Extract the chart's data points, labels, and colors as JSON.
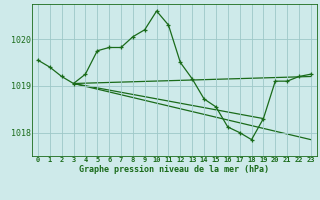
{
  "title": "Graphe pression niveau de la mer (hPa)",
  "bg_color": "#ceeaea",
  "line_color": "#1a6b1a",
  "grid_color": "#9ec8c8",
  "xlim": [
    -0.5,
    23.5
  ],
  "ylim": [
    1017.5,
    1020.75
  ],
  "yticks": [
    1018,
    1019,
    1020
  ],
  "xtick_labels": [
    "0",
    "1",
    "2",
    "3",
    "4",
    "5",
    "6",
    "7",
    "8",
    "9",
    "10",
    "11",
    "12",
    "13",
    "14",
    "15",
    "16",
    "17",
    "18",
    "19",
    "20",
    "21",
    "22",
    "23"
  ],
  "xtick_pos": [
    0,
    1,
    2,
    3,
    4,
    5,
    6,
    7,
    8,
    9,
    10,
    11,
    12,
    13,
    14,
    15,
    16,
    17,
    18,
    19,
    20,
    21,
    22,
    23
  ],
  "series1_x": [
    0,
    1,
    2,
    3,
    4,
    5,
    6,
    7,
    8,
    9,
    10,
    11,
    12,
    13,
    14,
    15,
    16,
    17,
    18,
    19,
    20,
    21,
    22,
    23
  ],
  "series1_y": [
    1019.55,
    1019.4,
    1019.2,
    1019.05,
    1019.25,
    1019.75,
    1019.82,
    1019.82,
    1020.05,
    1020.2,
    1020.6,
    1020.3,
    1019.5,
    1019.15,
    1018.72,
    1018.55,
    1018.12,
    1018.0,
    1017.85,
    1018.3,
    1019.1,
    1019.1,
    1019.2,
    1019.25
  ],
  "series2_x": [
    3,
    23
  ],
  "series2_y": [
    1019.05,
    1019.2
  ],
  "series3_x": [
    3,
    19
  ],
  "series3_y": [
    1019.05,
    1018.3
  ],
  "series4_x": [
    3,
    23
  ],
  "series4_y": [
    1019.05,
    1017.85
  ]
}
